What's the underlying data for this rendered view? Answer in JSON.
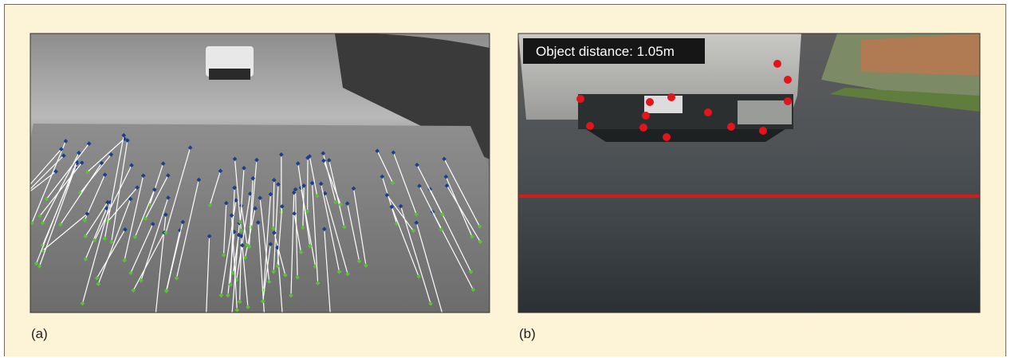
{
  "panel_a": {
    "label": "(a)"
  },
  "panel_b": {
    "label": "(b)",
    "overlay": "Object distance: 1.05m"
  }
}
